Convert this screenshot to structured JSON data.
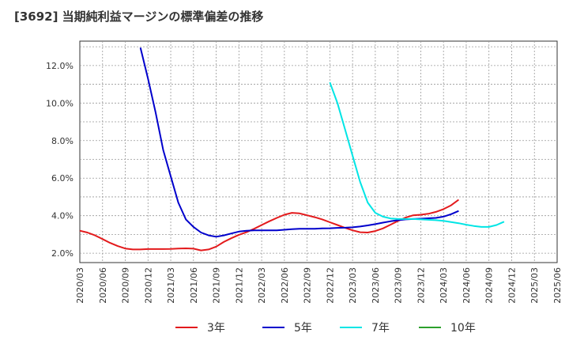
{
  "chart_data": {
    "type": "line",
    "title": "[3692]  当期純利益マージンの標準偏差の推移",
    "xlabel": "",
    "ylabel": "",
    "ylim": [
      1.5,
      13.3
    ],
    "y_ticks": [
      2.0,
      4.0,
      6.0,
      8.0,
      10.0,
      12.0
    ],
    "y_tick_labels": [
      "2.0%",
      "4.0%",
      "6.0%",
      "8.0%",
      "10.0%",
      "12.0%"
    ],
    "x_tick_labels": [
      "2020/03",
      "2020/06",
      "2020/09",
      "2020/12",
      "2021/03",
      "2021/06",
      "2021/09",
      "2021/12",
      "2022/03",
      "2022/06",
      "2022/09",
      "2022/12",
      "2023/03",
      "2023/06",
      "2023/09",
      "2023/12",
      "2024/03",
      "2024/06",
      "2024/09",
      "2024/12",
      "2025/03",
      "2025/06"
    ],
    "grid": true,
    "legend_position": "bottom",
    "series": [
      {
        "name": "3年",
        "color": "#e31a1c",
        "points": [
          [
            0,
            3.2
          ],
          [
            1,
            3.1
          ],
          [
            2,
            2.95
          ],
          [
            3,
            2.75
          ],
          [
            4,
            2.55
          ],
          [
            5,
            2.38
          ],
          [
            6,
            2.25
          ],
          [
            7,
            2.2
          ],
          [
            8,
            2.2
          ],
          [
            9,
            2.22
          ],
          [
            10,
            2.22
          ],
          [
            11,
            2.22
          ],
          [
            12,
            2.23
          ],
          [
            13,
            2.25
          ],
          [
            14,
            2.26
          ],
          [
            15,
            2.24
          ],
          [
            16,
            2.15
          ],
          [
            17,
            2.2
          ],
          [
            18,
            2.35
          ],
          [
            19,
            2.6
          ],
          [
            20,
            2.8
          ],
          [
            21,
            2.98
          ],
          [
            22,
            3.12
          ],
          [
            23,
            3.3
          ],
          [
            24,
            3.5
          ],
          [
            25,
            3.7
          ],
          [
            26,
            3.88
          ],
          [
            27,
            4.05
          ],
          [
            28,
            4.15
          ],
          [
            29,
            4.12
          ],
          [
            30,
            4.02
          ],
          [
            31,
            3.92
          ],
          [
            32,
            3.8
          ],
          [
            33,
            3.65
          ],
          [
            34,
            3.5
          ],
          [
            35,
            3.35
          ],
          [
            36,
            3.22
          ],
          [
            37,
            3.12
          ],
          [
            38,
            3.1
          ],
          [
            39,
            3.18
          ],
          [
            40,
            3.32
          ],
          [
            41,
            3.52
          ],
          [
            42,
            3.72
          ],
          [
            43,
            3.9
          ],
          [
            44,
            4.02
          ],
          [
            45,
            4.05
          ],
          [
            46,
            4.1
          ],
          [
            47,
            4.2
          ],
          [
            48,
            4.35
          ],
          [
            49,
            4.55
          ],
          [
            50,
            4.85
          ]
        ]
      },
      {
        "name": "5年",
        "color": "#0000cc",
        "points": [
          [
            8,
            12.95
          ],
          [
            9,
            11.3
          ],
          [
            10,
            9.5
          ],
          [
            11,
            7.5
          ],
          [
            12,
            6.1
          ],
          [
            13,
            4.7
          ],
          [
            14,
            3.8
          ],
          [
            15,
            3.4
          ],
          [
            16,
            3.1
          ],
          [
            17,
            2.95
          ],
          [
            18,
            2.88
          ],
          [
            19,
            2.95
          ],
          [
            20,
            3.05
          ],
          [
            21,
            3.15
          ],
          [
            22,
            3.2
          ],
          [
            23,
            3.22
          ],
          [
            24,
            3.22
          ],
          [
            25,
            3.22
          ],
          [
            26,
            3.22
          ],
          [
            27,
            3.25
          ],
          [
            28,
            3.28
          ],
          [
            29,
            3.3
          ],
          [
            30,
            3.3
          ],
          [
            31,
            3.3
          ],
          [
            32,
            3.32
          ],
          [
            33,
            3.33
          ],
          [
            34,
            3.35
          ],
          [
            35,
            3.36
          ],
          [
            36,
            3.38
          ],
          [
            37,
            3.42
          ],
          [
            38,
            3.48
          ],
          [
            39,
            3.55
          ],
          [
            40,
            3.63
          ],
          [
            41,
            3.7
          ],
          [
            42,
            3.76
          ],
          [
            43,
            3.8
          ],
          [
            44,
            3.82
          ],
          [
            45,
            3.84
          ],
          [
            46,
            3.86
          ],
          [
            47,
            3.88
          ],
          [
            48,
            3.95
          ],
          [
            49,
            4.08
          ],
          [
            50,
            4.25
          ]
        ]
      },
      {
        "name": "7年",
        "color": "#00e5e5",
        "points": [
          [
            33,
            11.1
          ],
          [
            34,
            10.0
          ],
          [
            35,
            8.6
          ],
          [
            36,
            7.2
          ],
          [
            37,
            5.8
          ],
          [
            38,
            4.7
          ],
          [
            39,
            4.15
          ],
          [
            40,
            3.95
          ],
          [
            41,
            3.85
          ],
          [
            42,
            3.82
          ],
          [
            43,
            3.82
          ],
          [
            44,
            3.82
          ],
          [
            45,
            3.8
          ],
          [
            46,
            3.78
          ],
          [
            47,
            3.76
          ],
          [
            48,
            3.72
          ],
          [
            49,
            3.66
          ],
          [
            50,
            3.6
          ],
          [
            51,
            3.52
          ],
          [
            52,
            3.45
          ],
          [
            53,
            3.4
          ],
          [
            54,
            3.4
          ],
          [
            55,
            3.5
          ],
          [
            56,
            3.68
          ]
        ]
      },
      {
        "name": "10年",
        "color": "#2ca02c",
        "points": []
      }
    ]
  }
}
